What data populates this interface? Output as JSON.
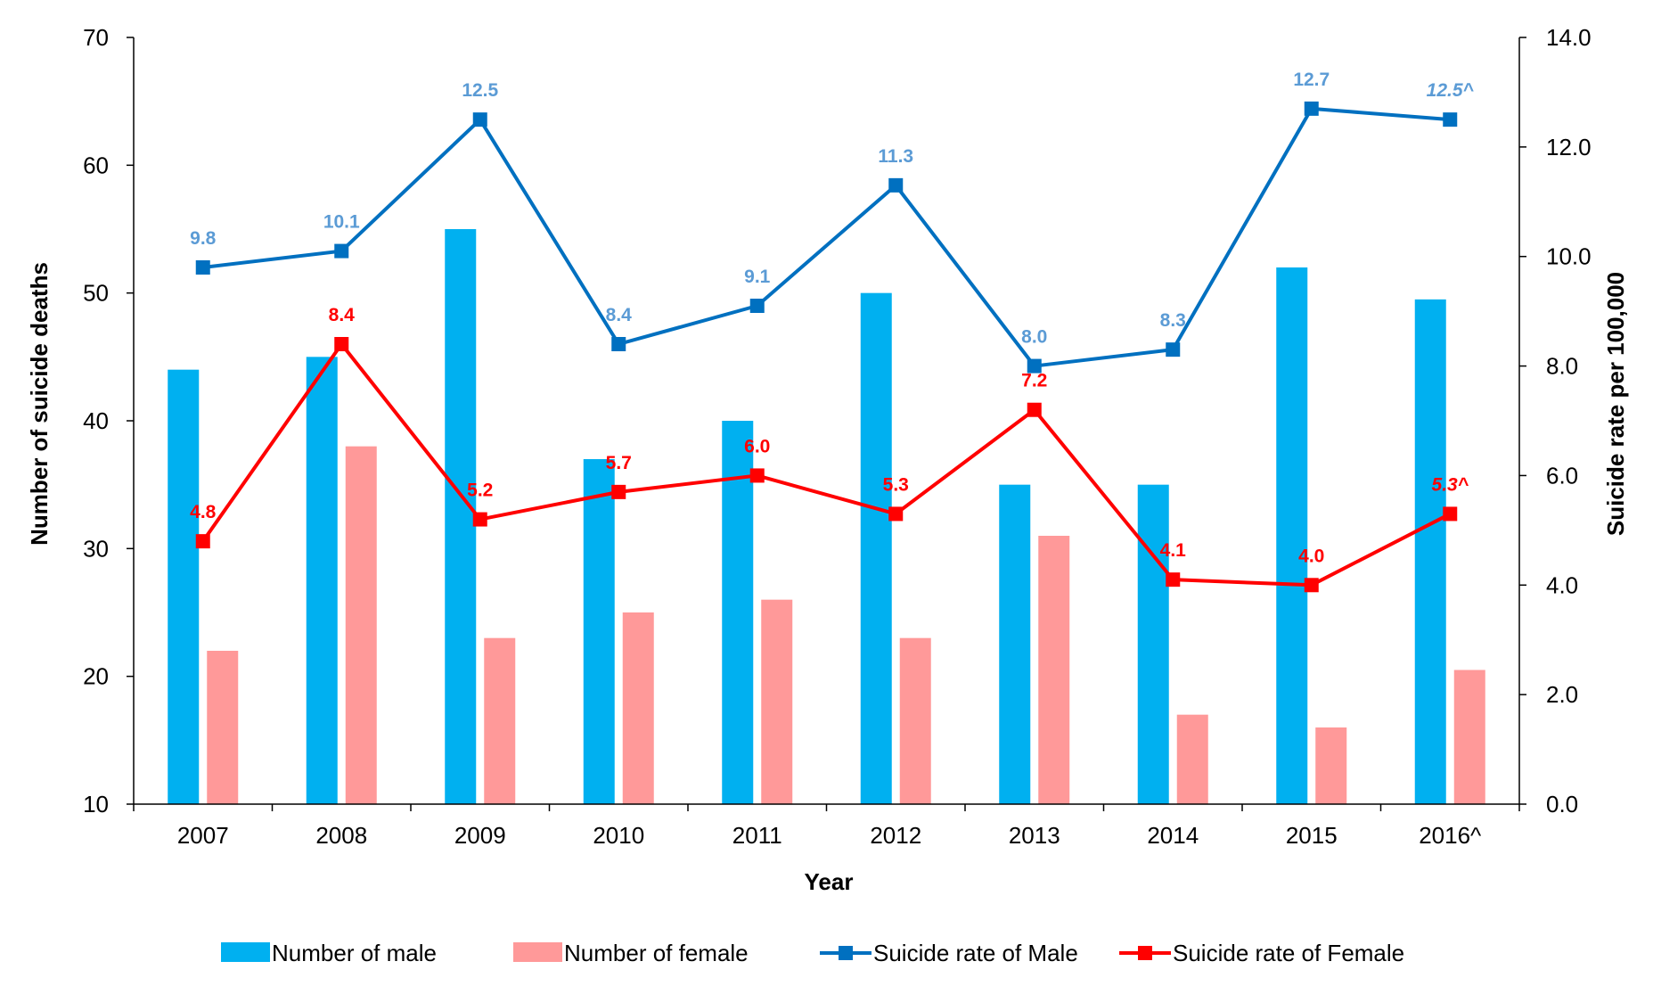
{
  "chart_data": {
    "type": "bar",
    "categories": [
      "2007",
      "2008",
      "2009",
      "2010",
      "2011",
      "2012",
      "2013",
      "2014",
      "2015",
      "2016^"
    ],
    "xlabel": "Year",
    "ylabel": "Number of suicide deaths",
    "y2label": "Suicide rate per 100,000",
    "ylim": [
      10,
      70
    ],
    "y2lim": [
      0,
      14
    ],
    "yticks": [
      "10",
      "20",
      "30",
      "40",
      "50",
      "60",
      "70"
    ],
    "y2ticks": [
      "0.0",
      "2.0",
      "4.0",
      "6.0",
      "8.0",
      "10.0",
      "12.0",
      "14.0"
    ],
    "grid": false,
    "legend_position": "bottom",
    "series": [
      {
        "name": "Number of male",
        "kind": "bar",
        "axis": "left",
        "color": "#00B0F0",
        "values": [
          44,
          45,
          55,
          37,
          40,
          50,
          35,
          35,
          52,
          49.5
        ]
      },
      {
        "name": "Number of female",
        "kind": "bar",
        "axis": "left",
        "color": "#FF9999",
        "values": [
          22,
          38,
          23,
          25,
          26,
          23,
          31,
          17,
          16,
          20.5
        ]
      },
      {
        "name": "Suicide rate of Male",
        "kind": "line",
        "axis": "right",
        "color": "#0070C0",
        "label_color": "#5B9BD5",
        "values": [
          9.8,
          10.1,
          12.5,
          8.4,
          9.1,
          11.3,
          8.0,
          8.3,
          12.7,
          12.5
        ],
        "labels": [
          "9.8",
          "10.1",
          "12.5",
          "8.4",
          "9.1",
          "11.3",
          "8.0",
          "8.3",
          "12.7",
          "12.5^"
        ]
      },
      {
        "name": "Suicide rate of Female",
        "kind": "line",
        "axis": "right",
        "color": "#FF0000",
        "label_color": "#FF0000",
        "values": [
          4.8,
          8.4,
          5.2,
          5.7,
          6.0,
          5.3,
          7.2,
          4.1,
          4.0,
          5.3
        ],
        "labels": [
          "4.8",
          "8.4",
          "5.2",
          "5.7",
          "6.0",
          "5.3",
          "7.2",
          "4.1",
          "4.0",
          "5.3^"
        ]
      }
    ]
  }
}
